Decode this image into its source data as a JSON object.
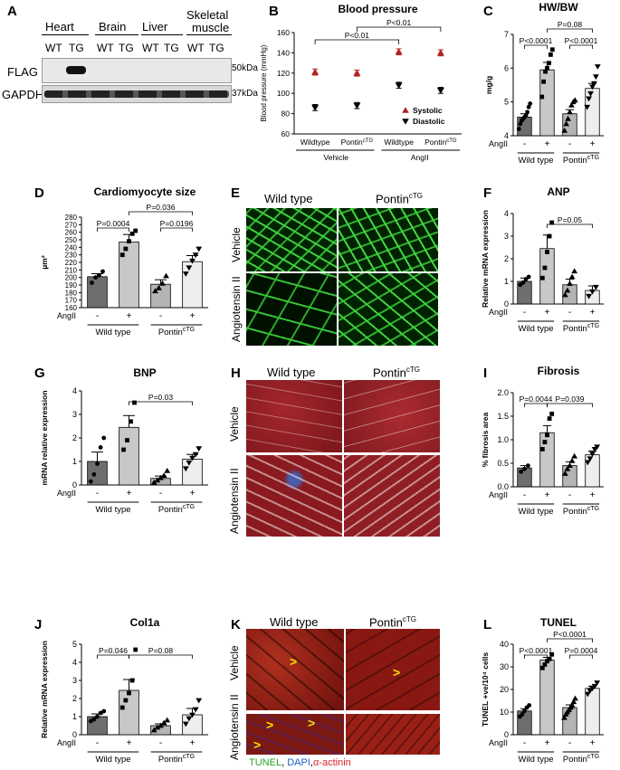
{
  "panels": {
    "A": {
      "label": "A",
      "headers": [
        "Heart",
        "Brain",
        "Liver",
        "Skeletal",
        "muscle"
      ],
      "lanes": [
        "WT",
        "TG",
        "WT",
        "TG",
        "WT",
        "TG",
        "WT",
        "TG"
      ],
      "rows": [
        "FLAG",
        "GAPDH"
      ],
      "sizes": [
        "50kDa",
        "37kDa"
      ]
    },
    "B": {
      "label": "B",
      "title": "Blood pressure",
      "ylabel": "Blood pressure (mmHg)"
    },
    "C": {
      "label": "C",
      "title": "HW/BW",
      "ylabel": "mg/g"
    },
    "D": {
      "label": "D",
      "title": "Cardiomyocyte size",
      "ylabel": "µm²"
    },
    "E": {
      "label": "E",
      "col1": "Wild type",
      "col2": "Pontin",
      "col2sup": "cTG",
      "row1": "Vehicle",
      "row2": "Angiotensin II"
    },
    "F": {
      "label": "F",
      "title": "ANP",
      "ylabel": "Relative mRNA expression"
    },
    "G": {
      "label": "G",
      "title": "BNP",
      "ylabel": "mRNA relative expression"
    },
    "H": {
      "label": "H",
      "col1": "Wild type",
      "col2": "Pontin",
      "col2sup": "cTG",
      "row1": "Vehicle",
      "row2": "Angiotensin II"
    },
    "I": {
      "label": "I",
      "title": "Fibrosis",
      "ylabel": "% fibrosis area"
    },
    "J": {
      "label": "J",
      "title": "Col1a",
      "ylabel": "Relative mRNA expression"
    },
    "K": {
      "label": "K",
      "col1": "Wild type",
      "col2": "Pontin",
      "col2sup": "cTG",
      "row1": "Vehicle",
      "row2": "Angiotensin II",
      "caption_tunel": "TUNEL",
      "caption_sep": ", ",
      "caption_dapi": "DAPI",
      "caption_sep2": ",",
      "caption_actinin": "α-actinin"
    },
    "L": {
      "label": "L",
      "title": "TUNEL",
      "ylabel": "TUNEL +ve/10⁴ cells"
    }
  },
  "common": {
    "angii": "AngII",
    "minus": "-",
    "plus": "+",
    "wt": "Wild type",
    "pontin": "Pontin",
    "sup": "cTG"
  },
  "colors": {
    "wt_ctrl": "#6e6e6e",
    "wt_ang": "#c8c8c8",
    "tg_ctrl": "#b4b4b4",
    "tg_ang": "#eeeeee",
    "systolic": "#b22222",
    "diastolic": "#000000"
  },
  "chart_data": [
    {
      "id": "B",
      "type": "scatter",
      "title": "Blood pressure",
      "ylabel": "Blood pressure (mmHg)",
      "ylim": [
        60,
        160
      ],
      "yticks": [
        "60",
        "80",
        "100",
        "120",
        "140",
        "160"
      ],
      "categories": [
        "Wildtype",
        "Pontin",
        "Wildtype",
        "Pontin"
      ],
      "category_sup": [
        "",
        "cTG",
        "",
        "cTG"
      ],
      "groups": [
        "Vehicle",
        "AngII"
      ],
      "series": [
        {
          "name": "Systolic",
          "values": [
            121,
            120,
            141,
            140
          ],
          "err": [
            3,
            3,
            3,
            3
          ],
          "marker": "triangle-up"
        },
        {
          "name": "Diastolic",
          "values": [
            86,
            88,
            108,
            103
          ],
          "err": [
            3,
            3,
            3,
            3
          ],
          "marker": "triangle-down"
        }
      ],
      "comparisons": [
        {
          "from": 0,
          "to": 2,
          "text": "P<0.01"
        },
        {
          "from": 1,
          "to": 3,
          "text": "P<0.01"
        }
      ],
      "legend_position": "bottom-right"
    },
    {
      "id": "C",
      "type": "bar",
      "title": "HW/BW",
      "ylabel": "mg/g",
      "ylim": [
        4,
        7
      ],
      "yticks": [
        "4",
        "5",
        "6",
        "7"
      ],
      "categories": [
        "WT -",
        "WT +",
        "TG -",
        "TG +"
      ],
      "values": [
        4.55,
        5.95,
        4.65,
        5.4
      ],
      "err": [
        0.1,
        0.22,
        0.12,
        0.15
      ],
      "points": [
        [
          4.2,
          4.35,
          4.45,
          4.5,
          4.55,
          4.6,
          4.7,
          4.85,
          4.95
        ],
        [
          5.15,
          5.6,
          5.9,
          6.0,
          6.15,
          6.4,
          6.55
        ],
        [
          4.15,
          4.35,
          4.5,
          4.7,
          4.9,
          5.0,
          5.05
        ],
        [
          4.85,
          5.1,
          5.25,
          5.45,
          5.55,
          5.75,
          6.05
        ]
      ],
      "markers": [
        "circle",
        "square",
        "triangle-up",
        "triangle-down"
      ],
      "comparisons": [
        {
          "from": 0,
          "to": 1,
          "text": "P<0.0001",
          "level": 1
        },
        {
          "from": 2,
          "to": 3,
          "text": "P<0.0001",
          "level": 1
        },
        {
          "from": 1,
          "to": 3,
          "text": "P=0.08",
          "level": 2
        }
      ]
    },
    {
      "id": "D",
      "type": "bar",
      "title": "Cardiomyocyte size",
      "ylabel": "µm²",
      "ylim": [
        160,
        280
      ],
      "yticks": [
        "160",
        "170",
        "180",
        "190",
        "200",
        "210",
        "220",
        "230",
        "240",
        "250",
        "260",
        "270",
        "280"
      ],
      "categories": [
        "WT -",
        "WT +",
        "TG -",
        "TG +"
      ],
      "values": [
        201,
        247,
        191,
        221
      ],
      "err": [
        4,
        10,
        6,
        8
      ],
      "points": [
        [
          193,
          200,
          203,
          208
        ],
        [
          230,
          238,
          248,
          258,
          262
        ],
        [
          182,
          186,
          192,
          202
        ],
        [
          205,
          213,
          222,
          230,
          238
        ]
      ],
      "markers": [
        "circle",
        "square",
        "triangle-up",
        "triangle-down"
      ],
      "comparisons": [
        {
          "from": 0,
          "to": 1,
          "text": "P=0.0004",
          "level": 1
        },
        {
          "from": 2,
          "to": 3,
          "text": "P=0.0196",
          "level": 1
        },
        {
          "from": 1,
          "to": 3,
          "text": "P=0.036",
          "level": 2
        }
      ]
    },
    {
      "id": "F",
      "type": "bar",
      "title": "ANP",
      "ylabel": "Relative mRNA expression",
      "ylim": [
        0,
        4
      ],
      "yticks": [
        "0",
        "1",
        "2",
        "3",
        "4"
      ],
      "categories": [
        "WT -",
        "WT +",
        "TG -",
        "TG +"
      ],
      "values": [
        1.0,
        2.45,
        0.85,
        0.6
      ],
      "err": [
        0.15,
        0.6,
        0.25,
        0.2
      ],
      "points": [
        [
          0.85,
          0.95,
          1.1,
          1.2
        ],
        [
          1.15,
          1.6,
          2.3,
          3.0,
          3.6
        ],
        [
          0.4,
          0.6,
          0.9,
          1.2,
          1.45
        ],
        [
          0.35,
          0.55,
          0.75
        ]
      ],
      "markers": [
        "circle",
        "square",
        "triangle-up",
        "triangle-down"
      ],
      "comparisons": [
        {
          "from": 1,
          "to": 3,
          "text": "P=0.05",
          "level": 1
        }
      ]
    },
    {
      "id": "G",
      "type": "bar",
      "title": "BNP",
      "ylabel": "mRNA relative expression",
      "ylim": [
        0,
        4
      ],
      "yticks": [
        "0",
        "1",
        "2",
        "3",
        "4"
      ],
      "categories": [
        "WT -",
        "WT +",
        "TG -",
        "TG +"
      ],
      "values": [
        1.0,
        2.45,
        0.28,
        1.1
      ],
      "err": [
        0.4,
        0.5,
        0.1,
        0.2
      ],
      "points": [
        [
          0.15,
          0.45,
          0.9,
          1.6,
          2.0
        ],
        [
          1.5,
          1.9,
          2.7,
          3.5
        ],
        [
          0.1,
          0.2,
          0.3,
          0.4,
          0.6
        ],
        [
          0.7,
          0.95,
          1.15,
          1.3,
          1.55
        ]
      ],
      "markers": [
        "circle",
        "square",
        "triangle-up",
        "triangle-down"
      ],
      "comparisons": [
        {
          "from": 1,
          "to": 3,
          "text": "P=0.03",
          "level": 1
        }
      ]
    },
    {
      "id": "I",
      "type": "bar",
      "title": "Fibrosis",
      "ylabel": "% fibrosis area",
      "ylim": [
        0,
        2.0
      ],
      "yticks": [
        "0.0",
        "0.5",
        "1.0",
        "1.5",
        "2.0"
      ],
      "categories": [
        "WT -",
        "WT +",
        "TG -",
        "TG +"
      ],
      "values": [
        0.4,
        1.15,
        0.45,
        0.68
      ],
      "err": [
        0.05,
        0.15,
        0.08,
        0.08
      ],
      "points": [
        [
          0.32,
          0.38,
          0.45
        ],
        [
          0.8,
          0.95,
          1.1,
          1.45,
          1.55
        ],
        [
          0.28,
          0.38,
          0.45,
          0.55,
          0.65
        ],
        [
          0.52,
          0.6,
          0.7,
          0.8,
          0.85
        ]
      ],
      "markers": [
        "circle",
        "square",
        "triangle-up",
        "triangle-down"
      ],
      "comparisons": [
        {
          "from": 0,
          "to": 1,
          "text": "P=0.0044",
          "level": 1
        },
        {
          "from": 1,
          "to": 3,
          "text": "P=0.039",
          "level": 1
        }
      ]
    },
    {
      "id": "J",
      "type": "bar",
      "title": "Col1a",
      "ylabel": "Relative mRNA expression",
      "ylim": [
        0,
        5
      ],
      "yticks": [
        "0",
        "1",
        "2",
        "3",
        "4",
        "5"
      ],
      "categories": [
        "WT -",
        "WT +",
        "TG -",
        "TG +"
      ],
      "values": [
        1.0,
        2.45,
        0.5,
        1.1
      ],
      "err": [
        0.15,
        0.6,
        0.1,
        0.35
      ],
      "points": [
        [
          0.75,
          0.85,
          1.0,
          1.2,
          1.3
        ],
        [
          1.5,
          1.9,
          2.3,
          3.0,
          4.7
        ],
        [
          0.25,
          0.4,
          0.5,
          0.65,
          0.8
        ],
        [
          0.6,
          0.9,
          1.1,
          1.4,
          1.9
        ]
      ],
      "markers": [
        "circle",
        "square",
        "triangle-up",
        "triangle-down"
      ],
      "comparisons": [
        {
          "from": 0,
          "to": 1,
          "text": "P=0.046",
          "level": 1
        },
        {
          "from": 1,
          "to": 3,
          "text": "P=0.08",
          "level": 1
        }
      ]
    },
    {
      "id": "L",
      "type": "bar",
      "title": "TUNEL",
      "ylabel": "TUNEL +ve/10⁴ cells",
      "ylim": [
        0,
        40
      ],
      "yticks": [
        "0",
        "10",
        "20",
        "30",
        "40"
      ],
      "categories": [
        "WT -",
        "WT +",
        "TG -",
        "TG +"
      ],
      "values": [
        10.5,
        33,
        12,
        20.5
      ],
      "err": [
        1,
        1.2,
        1.2,
        1
      ],
      "points": [
        [
          8,
          9,
          10.5,
          12,
          13
        ],
        [
          29.5,
          31,
          32.5,
          33.5,
          35.5
        ],
        [
          7.5,
          9,
          10,
          11,
          12,
          13,
          14.5,
          16
        ],
        [
          18,
          19.5,
          20.5,
          21.5,
          23
        ]
      ],
      "markers": [
        "circle",
        "square",
        "triangle-up",
        "triangle-down"
      ],
      "comparisons": [
        {
          "from": 0,
          "to": 1,
          "text": "P<0.0001",
          "level": 1
        },
        {
          "from": 2,
          "to": 3,
          "text": "P=0.0004",
          "level": 1
        },
        {
          "from": 1,
          "to": 3,
          "text": "P<0.0001",
          "level": 2
        }
      ]
    }
  ]
}
